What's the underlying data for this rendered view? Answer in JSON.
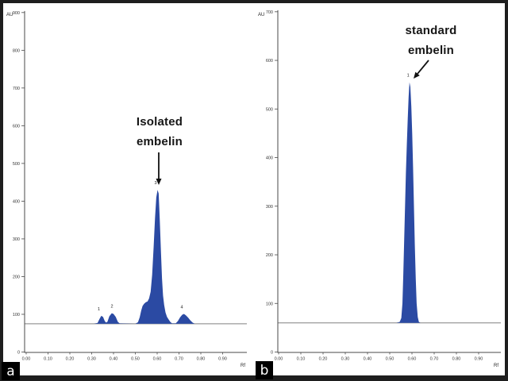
{
  "figure": {
    "description_colors": {
      "peak_fill": "#2b4aa3",
      "axis": "#4a4a4a",
      "baseline": "#9a9a9a",
      "frame": "#1e1e1e",
      "corner_box_bg": "#000000",
      "corner_box_text": "#ffffff"
    }
  },
  "chart_data": [
    {
      "type": "area",
      "panel_label": "a",
      "annotation": {
        "lines": [
          "Isolated",
          "embelin"
        ],
        "points_to_peak": "3"
      },
      "xlabel": "Rf",
      "ylabel": "AU",
      "xlim": [
        0.0,
        1.0
      ],
      "ylim": [
        0,
        900
      ],
      "x_ticks": [
        "0.00",
        "0.10",
        "0.20",
        "0.30",
        "0.40",
        "0.50",
        "0.60",
        "0.70",
        "0.80",
        "0.90"
      ],
      "y_ticks": [
        0,
        100,
        200,
        300,
        400,
        500,
        600,
        700,
        800,
        900
      ],
      "baseline_au": 75,
      "fill_color": "#2b4aa3",
      "peaks": [
        {
          "label": "1",
          "rf": 0.34,
          "apex_au": 96
        },
        {
          "label": "2",
          "rf": 0.4,
          "apex_au": 103
        },
        {
          "label": "3",
          "rf": 0.6,
          "apex_au": 430
        },
        {
          "label": "4",
          "rf": 0.72,
          "apex_au": 101
        }
      ],
      "trace_rf_au": [
        [
          0,
          75
        ],
        [
          0.31,
          75
        ],
        [
          0.327,
          77
        ],
        [
          0.336,
          88
        ],
        [
          0.344,
          96
        ],
        [
          0.352,
          93
        ],
        [
          0.36,
          82
        ],
        [
          0.366,
          78
        ],
        [
          0.372,
          80
        ],
        [
          0.381,
          95
        ],
        [
          0.392,
          103
        ],
        [
          0.4,
          101
        ],
        [
          0.41,
          93
        ],
        [
          0.42,
          80
        ],
        [
          0.428,
          76
        ],
        [
          0.5,
          75
        ],
        [
          0.512,
          79
        ],
        [
          0.52,
          92
        ],
        [
          0.527,
          110
        ],
        [
          0.533,
          122
        ],
        [
          0.54,
          128
        ],
        [
          0.548,
          132
        ],
        [
          0.556,
          134
        ],
        [
          0.563,
          142
        ],
        [
          0.57,
          160
        ],
        [
          0.577,
          205
        ],
        [
          0.584,
          280
        ],
        [
          0.59,
          355
        ],
        [
          0.596,
          410
        ],
        [
          0.602,
          430
        ],
        [
          0.607,
          420
        ],
        [
          0.612,
          350
        ],
        [
          0.617,
          270
        ],
        [
          0.622,
          195
        ],
        [
          0.627,
          150
        ],
        [
          0.632,
          125
        ],
        [
          0.638,
          105
        ],
        [
          0.645,
          93
        ],
        [
          0.652,
          87
        ],
        [
          0.66,
          80
        ],
        [
          0.668,
          76
        ],
        [
          0.685,
          76
        ],
        [
          0.695,
          82
        ],
        [
          0.705,
          92
        ],
        [
          0.715,
          99
        ],
        [
          0.723,
          101
        ],
        [
          0.732,
          97
        ],
        [
          0.742,
          91
        ],
        [
          0.752,
          84
        ],
        [
          0.762,
          78
        ],
        [
          0.772,
          75
        ],
        [
          1,
          75
        ]
      ]
    },
    {
      "type": "area",
      "panel_label": "b",
      "annotation": {
        "lines": [
          "standard",
          "embelin"
        ],
        "points_to_peak": "1"
      },
      "xlabel": "Rf",
      "ylabel": "AU",
      "xlim": [
        0.0,
        1.0
      ],
      "ylim": [
        0,
        700
      ],
      "x_ticks": [
        "0.00",
        "0.10",
        "0.20",
        "0.30",
        "0.40",
        "0.50",
        "0.60",
        "0.70",
        "0.80",
        "0.90"
      ],
      "y_ticks": [
        0,
        100,
        200,
        300,
        400,
        500,
        600,
        700
      ],
      "baseline_au": 60,
      "fill_color": "#2b4aa3",
      "peaks": [
        {
          "label": "1",
          "rf": 0.59,
          "apex_au": 555
        }
      ],
      "trace_rf_au": [
        [
          0,
          60
        ],
        [
          0.53,
          60
        ],
        [
          0.545,
          62
        ],
        [
          0.552,
          70
        ],
        [
          0.557,
          100
        ],
        [
          0.561,
          160
        ],
        [
          0.565,
          230
        ],
        [
          0.569,
          300
        ],
        [
          0.573,
          370
        ],
        [
          0.577,
          430
        ],
        [
          0.581,
          480
        ],
        [
          0.585,
          525
        ],
        [
          0.589,
          555
        ],
        [
          0.593,
          545
        ],
        [
          0.597,
          505
        ],
        [
          0.601,
          450
        ],
        [
          0.605,
          380
        ],
        [
          0.609,
          300
        ],
        [
          0.613,
          220
        ],
        [
          0.617,
          150
        ],
        [
          0.621,
          100
        ],
        [
          0.626,
          72
        ],
        [
          0.631,
          62
        ],
        [
          0.638,
          60
        ],
        [
          1,
          60
        ]
      ]
    }
  ]
}
